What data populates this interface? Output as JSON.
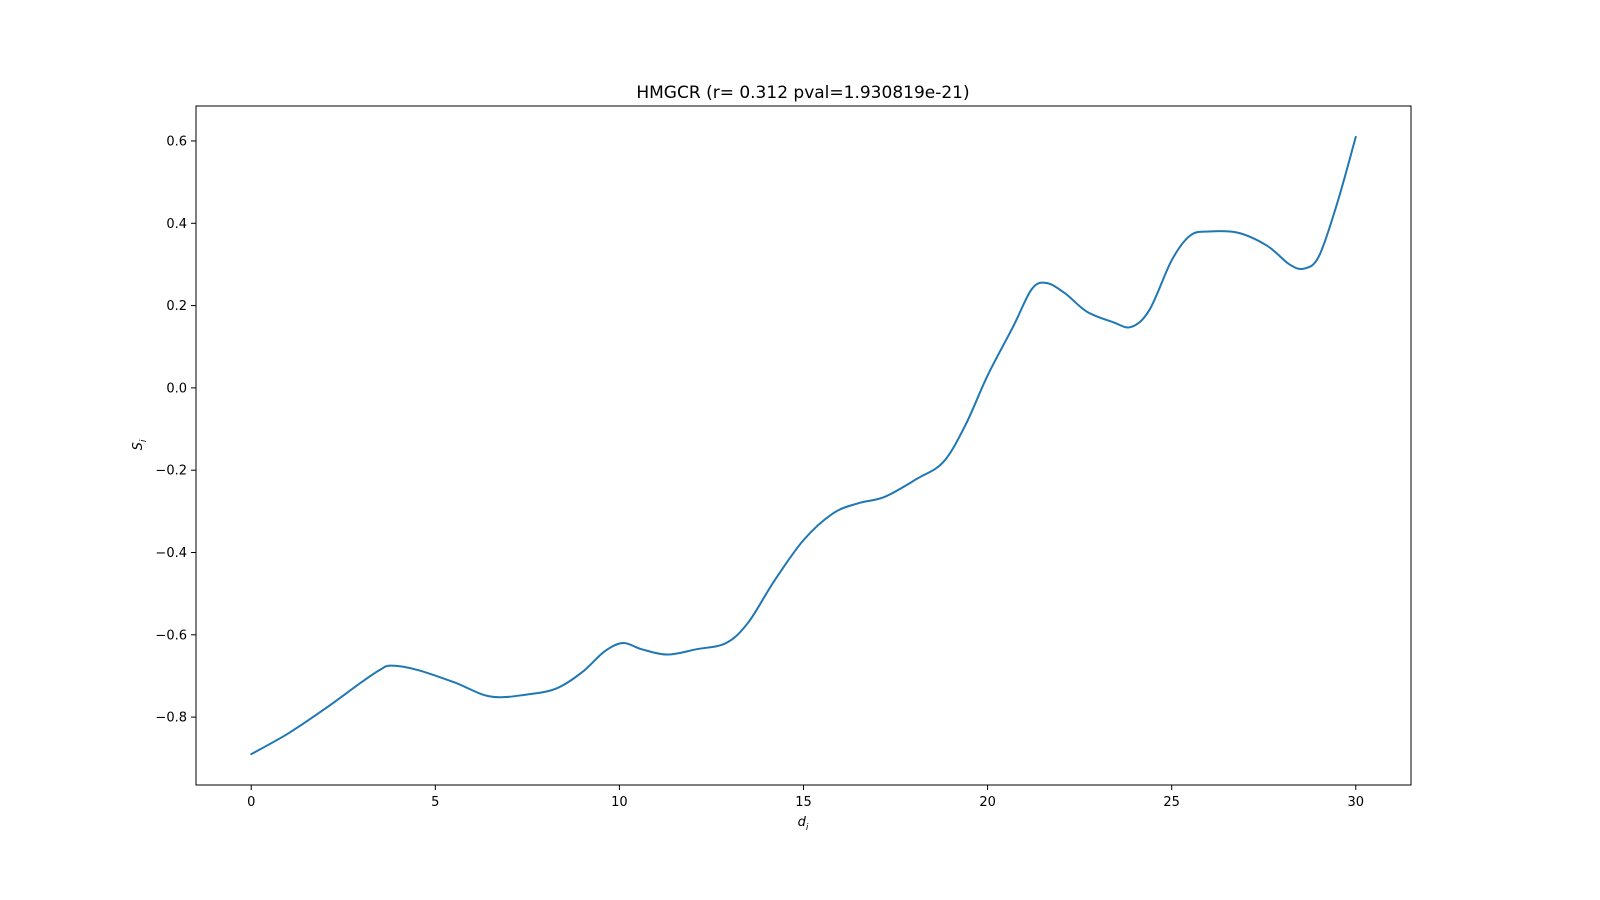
{
  "chart_data": {
    "type": "line",
    "title": "HMGCR (r= 0.312 pval=1.930819e-21)",
    "xlabel": "d",
    "xlabel_sub": "i",
    "ylabel": "S",
    "ylabel_sub": "i",
    "xlim": [
      -1.5,
      31.5
    ],
    "ylim": [
      -0.965,
      0.685
    ],
    "xticks": [
      0,
      5,
      10,
      15,
      20,
      25,
      30
    ],
    "xtick_labels": [
      "0",
      "5",
      "10",
      "15",
      "20",
      "25",
      "30"
    ],
    "yticks": [
      -0.8,
      -0.6,
      -0.4,
      -0.2,
      0.0,
      0.2,
      0.4,
      0.6
    ],
    "ytick_labels": [
      "−0.8",
      "−0.6",
      "−0.4",
      "−0.2",
      "0.0",
      "0.2",
      "0.4",
      "0.6"
    ],
    "grid": false,
    "series": [
      {
        "color": "#1f77b4",
        "points": [
          [
            0,
            -0.89
          ],
          [
            1,
            -0.84
          ],
          [
            2,
            -0.78
          ],
          [
            3,
            -0.715
          ],
          [
            3.5,
            -0.685
          ],
          [
            3.8,
            -0.675
          ],
          [
            4.5,
            -0.685
          ],
          [
            5.5,
            -0.715
          ],
          [
            6.5,
            -0.75
          ],
          [
            7.5,
            -0.745
          ],
          [
            8.3,
            -0.73
          ],
          [
            9,
            -0.69
          ],
          [
            9.6,
            -0.64
          ],
          [
            10.1,
            -0.62
          ],
          [
            10.6,
            -0.635
          ],
          [
            11.3,
            -0.648
          ],
          [
            12.1,
            -0.635
          ],
          [
            12.9,
            -0.62
          ],
          [
            13.5,
            -0.57
          ],
          [
            14.2,
            -0.47
          ],
          [
            15,
            -0.37
          ],
          [
            15.8,
            -0.305
          ],
          [
            16.5,
            -0.28
          ],
          [
            17.2,
            -0.265
          ],
          [
            18.1,
            -0.22
          ],
          [
            18.8,
            -0.18
          ],
          [
            19.4,
            -0.09
          ],
          [
            20,
            0.03
          ],
          [
            20.7,
            0.15
          ],
          [
            21.2,
            0.24
          ],
          [
            21.6,
            0.255
          ],
          [
            22.1,
            0.23
          ],
          [
            22.7,
            0.185
          ],
          [
            23.4,
            0.16
          ],
          [
            23.9,
            0.148
          ],
          [
            24.4,
            0.19
          ],
          [
            25,
            0.31
          ],
          [
            25.5,
            0.37
          ],
          [
            26,
            0.38
          ],
          [
            26.8,
            0.377
          ],
          [
            27.6,
            0.345
          ],
          [
            28.2,
            0.3
          ],
          [
            28.6,
            0.29
          ],
          [
            29,
            0.32
          ],
          [
            29.5,
            0.45
          ],
          [
            30,
            0.61
          ]
        ]
      }
    ]
  }
}
